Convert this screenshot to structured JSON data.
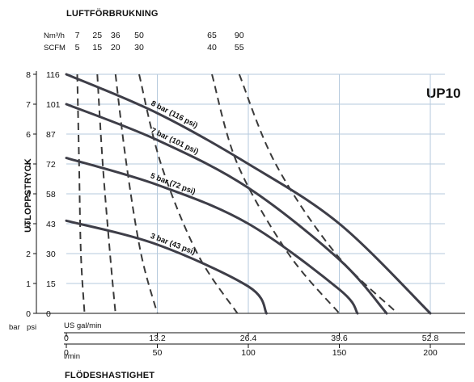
{
  "chart_data": {
    "type": "line",
    "model": "UP10",
    "title": "LUFTFÖRBRUKNING",
    "xlabel": "FLÖDESHASTIGHET",
    "ylabel": "UTLOPPSTRYCK",
    "x_units": {
      "us": "US gal/min",
      "metric": "l/min"
    },
    "y_units": {
      "bar": "bar",
      "psi": "psi"
    },
    "air_units": {
      "metric": "Nm³/h",
      "imperial": "SCFM"
    },
    "xlim_lpm": [
      0,
      200
    ],
    "ylim_bar": [
      0,
      8
    ],
    "x_ticks_us": [
      "0",
      "13.2",
      "26.4",
      "39.6",
      "52.8"
    ],
    "x_ticks_lpm": [
      "0",
      "50",
      "100",
      "150",
      "200"
    ],
    "y_ticks_bar": [
      "0",
      "1",
      "2",
      "3",
      "4",
      "5",
      "6",
      "7",
      "8"
    ],
    "y_ticks_psi": [
      "0",
      "15",
      "30",
      "43",
      "58",
      "72",
      "87",
      "101",
      "116"
    ],
    "grid": true,
    "pressure_curves": [
      {
        "name": "8 bar (116 psi)",
        "points": [
          [
            0,
            8
          ],
          [
            50,
            6.7
          ],
          [
            100,
            5.0
          ],
          [
            150,
            3.0
          ],
          [
            200,
            0
          ]
        ]
      },
      {
        "name": "7 bar (101 psi)",
        "points": [
          [
            0,
            7
          ],
          [
            50,
            5.8
          ],
          [
            100,
            4.2
          ],
          [
            150,
            1.8
          ],
          [
            176,
            0
          ]
        ]
      },
      {
        "name": "5 bar (72 psi)",
        "points": [
          [
            0,
            5.2
          ],
          [
            50,
            4.3
          ],
          [
            100,
            3.0
          ],
          [
            150,
            0.8
          ],
          [
            160,
            0
          ]
        ]
      },
      {
        "name": "3 bar (43 psi)",
        "points": [
          [
            0,
            3.1
          ],
          [
            50,
            2.3
          ],
          [
            100,
            0.9
          ],
          [
            110,
            0
          ]
        ]
      }
    ],
    "air_consumption_curves": [
      {
        "nm3h": "7",
        "scfm": "5",
        "points": [
          [
            6,
            8
          ],
          [
            7,
            5
          ],
          [
            8,
            2
          ],
          [
            10,
            0
          ]
        ]
      },
      {
        "nm3h": "25",
        "scfm": "15",
        "points": [
          [
            17,
            8
          ],
          [
            20,
            5
          ],
          [
            24,
            2
          ],
          [
            27,
            0
          ]
        ]
      },
      {
        "nm3h": "36",
        "scfm": "20",
        "points": [
          [
            27,
            8
          ],
          [
            33,
            5
          ],
          [
            41,
            2
          ],
          [
            50,
            0
          ]
        ]
      },
      {
        "nm3h": "50",
        "scfm": "30",
        "points": [
          [
            40,
            8
          ],
          [
            52,
            5
          ],
          [
            72,
            2
          ],
          [
            94,
            0
          ]
        ]
      },
      {
        "nm3h": "65",
        "scfm": "40",
        "points": [
          [
            80,
            8
          ],
          [
            94,
            5
          ],
          [
            122,
            2
          ],
          [
            150,
            0
          ]
        ]
      },
      {
        "nm3h": "90",
        "scfm": "55",
        "points": [
          [
            95,
            8
          ],
          [
            115,
            5
          ],
          [
            148,
            2
          ],
          [
            182,
            0
          ]
        ]
      }
    ]
  }
}
